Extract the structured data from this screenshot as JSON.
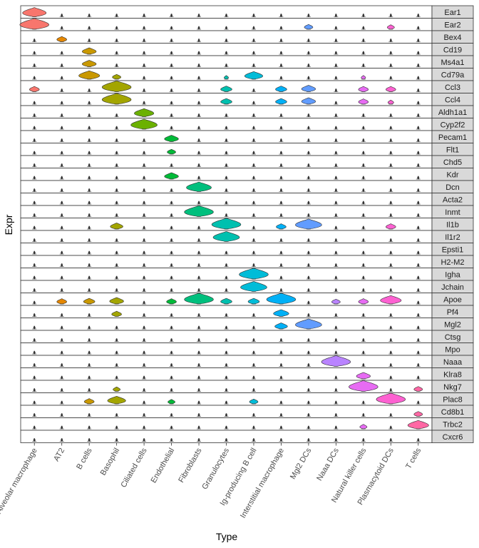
{
  "chart_data": {
    "type": "violin",
    "xlabel": "Type",
    "ylabel": "Expr",
    "categories": [
      "Alveolar macrophage",
      "AT2",
      "B cells",
      "Basophil",
      "Ciliated cells",
      "Endothelial",
      "Fibroblasts",
      "Granulocytes",
      "Ig-producing B cell",
      "Interstitial macrophage",
      "Mgl2 DCs",
      "Naaa DCs",
      "Natural killer cells",
      "Plasmacytoid DCs",
      "T cells"
    ],
    "colors": [
      "#F8766D",
      "#E58700",
      "#C99800",
      "#A3A500",
      "#6BB100",
      "#00BA38",
      "#00BF7D",
      "#00C0AF",
      "#00BCD8",
      "#00B0F6",
      "#619CFF",
      "#B983FF",
      "#E76BF3",
      "#FD61D1",
      "#FF67A4"
    ],
    "genes": [
      "Ear1",
      "Ear2",
      "Bex4",
      "Cd19",
      "Ms4a1",
      "Cd79a",
      "Ccl3",
      "Ccl4",
      "Aldh1a1",
      "Cyp2f2",
      "Pecam1",
      "Flt1",
      "Chd5",
      "Kdr",
      "Dcn",
      "Acta2",
      "Inmt",
      "Il1b",
      "Il1r2",
      "Epsti1",
      "H2-M2",
      "Igha",
      "Jchain",
      "Apoe",
      "Pf4",
      "Mgl2",
      "Ctsg",
      "Mpo",
      "Naaa",
      "Klra8",
      "Nkg7",
      "Plac8",
      "Cd8b1",
      "Trbc2",
      "Cxcr6"
    ],
    "expression_level": [
      [
        0.8,
        0,
        0,
        0,
        0,
        0,
        0,
        0,
        0,
        0,
        0,
        0,
        0,
        0,
        0
      ],
      [
        1.0,
        0,
        0,
        0,
        0,
        0,
        0,
        0,
        0,
        0,
        0.25,
        0,
        0,
        0.2,
        0
      ],
      [
        0,
        0.3,
        0,
        0,
        0,
        0,
        0,
        0,
        0,
        0,
        0,
        0,
        0,
        0,
        0
      ],
      [
        0,
        0,
        0.45,
        0,
        0,
        0,
        0,
        0,
        0,
        0,
        0,
        0,
        0,
        0,
        0
      ],
      [
        0,
        0,
        0.45,
        0,
        0,
        0,
        0,
        0,
        0,
        0,
        0,
        0,
        0,
        0,
        0
      ],
      [
        0,
        0,
        0.7,
        0.25,
        0,
        0,
        0,
        0.1,
        0.6,
        0,
        0,
        0,
        0.1,
        0,
        0
      ],
      [
        0.3,
        0,
        0,
        1.0,
        0,
        0,
        0,
        0.35,
        0,
        0.35,
        0.45,
        0,
        0.3,
        0.3,
        0
      ],
      [
        0,
        0,
        0,
        1.0,
        0,
        0,
        0,
        0.35,
        0,
        0.35,
        0.45,
        0,
        0.3,
        0.15,
        0
      ],
      [
        0,
        0,
        0,
        0,
        0.65,
        0,
        0,
        0,
        0,
        0,
        0,
        0,
        0,
        0,
        0
      ],
      [
        0,
        0,
        0,
        0,
        0.9,
        0,
        0,
        0,
        0,
        0,
        0,
        0,
        0,
        0,
        0
      ],
      [
        0,
        0,
        0,
        0,
        0,
        0.45,
        0,
        0,
        0,
        0,
        0,
        0,
        0,
        0,
        0
      ],
      [
        0,
        0,
        0,
        0,
        0,
        0.25,
        0,
        0,
        0,
        0,
        0,
        0,
        0,
        0,
        0
      ],
      [
        0,
        0,
        0,
        0,
        0,
        0,
        0,
        0,
        0,
        0,
        0,
        0,
        0,
        0,
        0
      ],
      [
        0,
        0,
        0,
        0,
        0,
        0.45,
        0,
        0,
        0,
        0,
        0,
        0,
        0,
        0,
        0
      ],
      [
        0,
        0,
        0,
        0,
        0,
        0,
        0.85,
        0,
        0,
        0,
        0,
        0,
        0,
        0,
        0
      ],
      [
        0,
        0,
        0,
        0,
        0,
        0,
        0,
        0,
        0,
        0,
        0,
        0,
        0,
        0,
        0
      ],
      [
        0,
        0,
        0,
        0,
        0,
        0,
        1.0,
        0,
        0,
        0,
        0,
        0,
        0,
        0,
        0
      ],
      [
        0,
        0,
        0,
        0.4,
        0,
        0,
        0,
        1.0,
        0,
        0.3,
        0.9,
        0,
        0,
        0.3,
        0
      ],
      [
        0,
        0,
        0,
        0,
        0,
        0,
        0,
        0.9,
        0,
        0,
        0,
        0,
        0,
        0,
        0
      ],
      [
        0,
        0,
        0,
        0,
        0,
        0,
        0,
        0,
        0,
        0,
        0,
        0,
        0,
        0,
        0
      ],
      [
        0,
        0,
        0,
        0,
        0,
        0,
        0,
        0,
        0,
        0,
        0,
        0,
        0,
        0,
        0
      ],
      [
        0,
        0,
        0,
        0,
        0,
        0,
        0,
        0,
        1.0,
        0,
        0,
        0,
        0,
        0,
        0
      ],
      [
        0,
        0,
        0,
        0,
        0,
        0,
        0,
        0,
        0.9,
        0,
        0,
        0,
        0,
        0,
        0
      ],
      [
        0,
        0.3,
        0.35,
        0.45,
        0,
        0.3,
        1.0,
        0.35,
        0.35,
        1.0,
        0,
        0.25,
        0.3,
        0.7,
        0
      ],
      [
        0,
        0,
        0,
        0.3,
        0,
        0,
        0,
        0,
        0,
        0.5,
        0,
        0,
        0,
        0,
        0
      ],
      [
        0,
        0,
        0,
        0,
        0,
        0,
        0,
        0,
        0,
        0.4,
        0.9,
        0,
        0,
        0,
        0
      ],
      [
        0,
        0,
        0,
        0,
        0,
        0,
        0,
        0,
        0,
        0,
        0,
        0,
        0,
        0,
        0
      ],
      [
        0,
        0,
        0,
        0,
        0,
        0,
        0,
        0,
        0,
        0,
        0,
        0,
        0,
        0,
        0
      ],
      [
        0,
        0,
        0,
        0,
        0,
        0,
        0,
        0,
        0,
        0,
        0,
        1.0,
        0,
        0,
        0
      ],
      [
        0,
        0,
        0,
        0,
        0,
        0,
        0,
        0,
        0,
        0,
        0,
        0,
        0.45,
        0,
        0
      ],
      [
        0,
        0,
        0,
        0.2,
        0,
        0,
        0,
        0,
        0,
        0,
        0,
        0,
        1.0,
        0,
        0.25
      ],
      [
        0,
        0,
        0.3,
        0.6,
        0,
        0.2,
        0,
        0,
        0.25,
        0,
        0,
        0,
        0,
        1.0,
        0
      ],
      [
        0,
        0,
        0,
        0,
        0,
        0,
        0,
        0,
        0,
        0,
        0,
        0,
        0,
        0,
        0.25
      ],
      [
        0,
        0,
        0,
        0,
        0,
        0,
        0,
        0,
        0,
        0,
        0,
        0,
        0.2,
        0,
        0.7
      ],
      [
        0,
        0,
        0,
        0,
        0,
        0,
        0,
        0,
        0,
        0,
        0,
        0,
        0,
        0,
        0
      ]
    ]
  }
}
